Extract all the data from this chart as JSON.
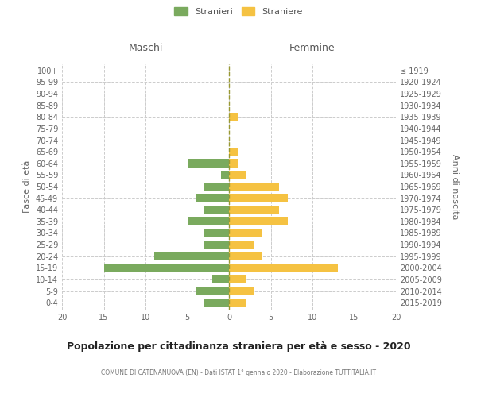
{
  "age_groups": [
    "0-4",
    "5-9",
    "10-14",
    "15-19",
    "20-24",
    "25-29",
    "30-34",
    "35-39",
    "40-44",
    "45-49",
    "50-54",
    "55-59",
    "60-64",
    "65-69",
    "70-74",
    "75-79",
    "80-84",
    "85-89",
    "90-94",
    "95-99",
    "100+"
  ],
  "birth_years": [
    "2015-2019",
    "2010-2014",
    "2005-2009",
    "2000-2004",
    "1995-1999",
    "1990-1994",
    "1985-1989",
    "1980-1984",
    "1975-1979",
    "1970-1974",
    "1965-1969",
    "1960-1964",
    "1955-1959",
    "1950-1954",
    "1945-1949",
    "1940-1944",
    "1935-1939",
    "1930-1934",
    "1925-1929",
    "1920-1924",
    "≤ 1919"
  ],
  "males": [
    3,
    4,
    2,
    15,
    9,
    3,
    3,
    5,
    3,
    4,
    3,
    1,
    5,
    0,
    0,
    0,
    0,
    0,
    0,
    0,
    0
  ],
  "females": [
    2,
    3,
    2,
    13,
    4,
    3,
    4,
    7,
    6,
    7,
    6,
    2,
    1,
    1,
    0,
    0,
    1,
    0,
    0,
    0,
    0
  ],
  "male_color": "#7aaa5e",
  "female_color": "#f5c242",
  "grid_color": "#cccccc",
  "center_line_color": "#999933",
  "background_color": "#ffffff",
  "title": "Popolazione per cittadinanza straniera per età e sesso - 2020",
  "subtitle": "COMUNE DI CATENANUOVA (EN) - Dati ISTAT 1° gennaio 2020 - Elaborazione TUTTITALIA.IT",
  "ylabel_left": "Fasce di età",
  "ylabel_right": "Anni di nascita",
  "xlabel_left": "Maschi",
  "xlabel_right": "Femmine",
  "legend_males": "Stranieri",
  "legend_females": "Straniere",
  "xlim": 20,
  "bar_height": 0.75
}
